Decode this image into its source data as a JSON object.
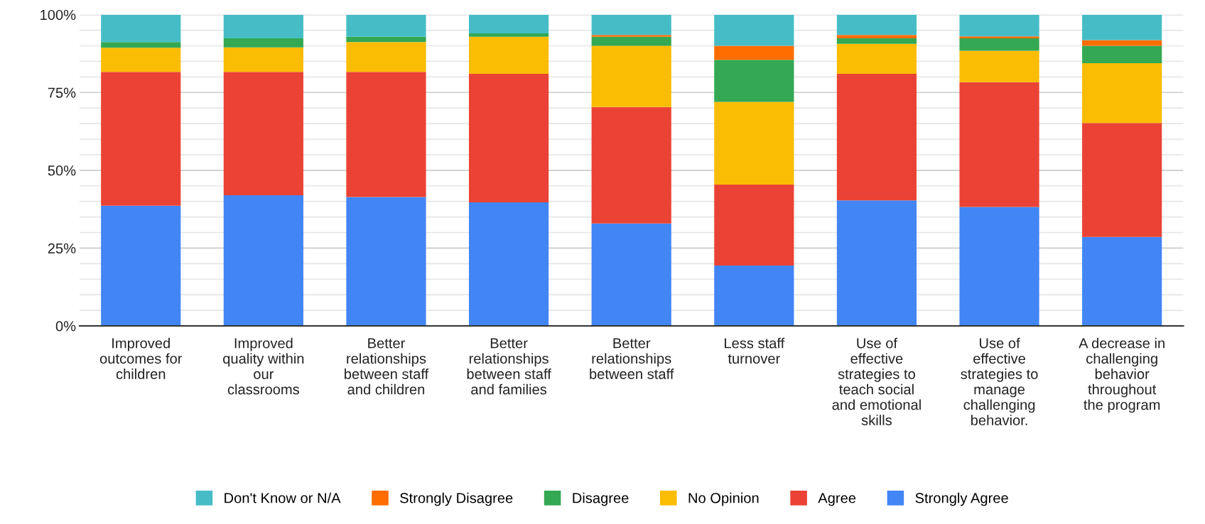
{
  "chart_data": {
    "type": "bar",
    "stacked": true,
    "categories": [
      "Improved\noutcomes for\nchildren",
      "Improved\nquality within\nour\nclassrooms",
      "Better\nrelationships\nbetween staff\nand children",
      "Better\nrelationships\nbetween staff\nand families",
      "Better\nrelationships\nbetween staff",
      "Less staff\nturnover",
      "Use of\neffective\nstrategies to\nteach social\nand emotional\nskills",
      "Use of\neffective\nstrategies to\nmanage\nchallenging\nbehavior.",
      "A decrease in\nchallenging\nbehavior\nthroughout\nthe program"
    ],
    "series": [
      {
        "name": "Strongly Agree",
        "color": "#4285f4",
        "values": [
          38.6,
          42.0,
          41.4,
          39.7,
          32.9,
          19.4,
          40.3,
          38.2,
          28.6
        ]
      },
      {
        "name": "Agree",
        "color": "#ea4335",
        "values": [
          43.0,
          39.6,
          40.2,
          41.3,
          37.4,
          26.0,
          40.7,
          40.1,
          36.6
        ]
      },
      {
        "name": "No Opinion",
        "color": "#fbbc04",
        "values": [
          7.8,
          7.9,
          9.6,
          11.9,
          19.7,
          26.6,
          9.6,
          10.1,
          19.2
        ]
      },
      {
        "name": "Disagree",
        "color": "#34a853",
        "values": [
          1.8,
          2.9,
          1.7,
          1.1,
          2.9,
          13.5,
          1.8,
          4.0,
          5.6
        ]
      },
      {
        "name": "Strongly Disagree",
        "color": "#ff6d01",
        "values": [
          0,
          0,
          0,
          0,
          0.6,
          4.5,
          1.1,
          0.6,
          1.8
        ]
      },
      {
        "name": "Don't Know or N/A",
        "color": "#46bdc6",
        "values": [
          8.8,
          7.6,
          7.1,
          6.0,
          6.5,
          10.0,
          6.5,
          7.0,
          8.2
        ]
      }
    ],
    "ylim": [
      0,
      100
    ],
    "yticks": [
      {
        "value": 0,
        "label": "0%"
      },
      {
        "value": 5,
        "label": null
      },
      {
        "value": 10,
        "label": null
      },
      {
        "value": 15,
        "label": null
      },
      {
        "value": 20,
        "label": null
      },
      {
        "value": 25,
        "label": "25%"
      },
      {
        "value": 30,
        "label": null
      },
      {
        "value": 35,
        "label": null
      },
      {
        "value": 40,
        "label": null
      },
      {
        "value": 45,
        "label": null
      },
      {
        "value": 50,
        "label": "50%"
      },
      {
        "value": 55,
        "label": null
      },
      {
        "value": 60,
        "label": null
      },
      {
        "value": 65,
        "label": null
      },
      {
        "value": 70,
        "label": null
      },
      {
        "value": 75,
        "label": "75%"
      },
      {
        "value": 80,
        "label": null
      },
      {
        "value": 85,
        "label": null
      },
      {
        "value": 90,
        "label": null
      },
      {
        "value": 95,
        "label": null
      },
      {
        "value": 100,
        "label": "100%"
      }
    ],
    "grid": "y",
    "legend": "bottom"
  }
}
